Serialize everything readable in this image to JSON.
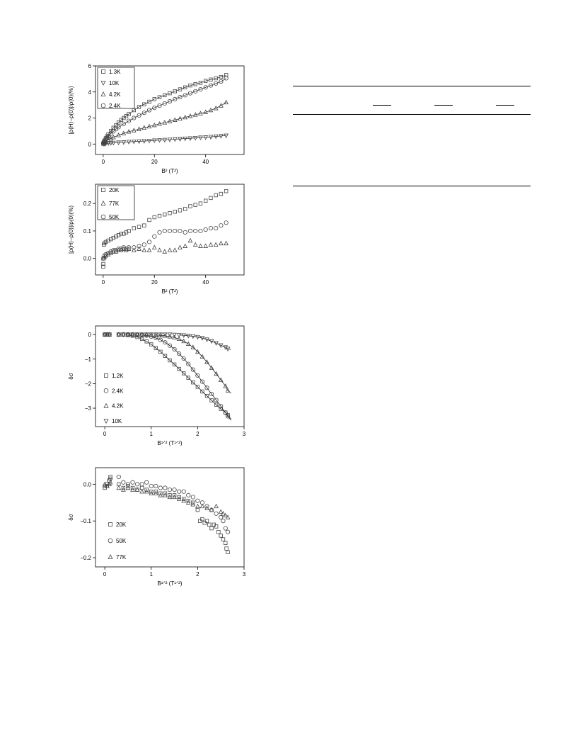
{
  "chart_data": [
    {
      "id": "p1",
      "type": "scatter",
      "xlabel": "B² (T²)",
      "ylabel": "[ρ(H)−ρ(0)]/ρ(0)(%)",
      "xlim": [
        -3,
        55
      ],
      "ylim": [
        -0.8,
        6
      ],
      "xticks": [
        0,
        20,
        40
      ],
      "yticks": [
        0,
        2,
        4,
        6
      ],
      "ytick_labels": [
        "0",
        "2",
        "4",
        "6"
      ],
      "legend": "top-left",
      "series": [
        {
          "name": "1.3K",
          "marker": "square",
          "x": [
            0.05,
            0.2,
            0.5,
            1,
            1.5,
            2,
            3,
            4,
            5,
            6,
            7,
            8,
            9,
            10,
            12,
            14,
            16,
            18,
            20,
            22,
            24,
            26,
            28,
            30,
            32,
            34,
            36,
            38,
            40,
            42,
            44,
            46,
            48
          ],
          "y": [
            0.05,
            0.15,
            0.28,
            0.45,
            0.6,
            0.75,
            1.0,
            1.25,
            1.45,
            1.65,
            1.85,
            2.0,
            2.15,
            2.3,
            2.6,
            2.85,
            3.05,
            3.25,
            3.45,
            3.6,
            3.75,
            3.9,
            4.05,
            4.2,
            4.35,
            4.5,
            4.6,
            4.7,
            4.85,
            4.95,
            5.05,
            5.15,
            5.3
          ]
        },
        {
          "name": "10K",
          "marker": "triangle-down",
          "x": [
            0.05,
            0.5,
            1,
            2,
            3,
            4,
            6,
            8,
            10,
            12,
            14,
            16,
            18,
            20,
            22,
            24,
            26,
            28,
            30,
            32,
            34,
            36,
            38,
            40,
            42,
            44,
            46,
            48
          ],
          "y": [
            0.0,
            0.02,
            0.04,
            0.06,
            0.08,
            0.1,
            0.12,
            0.14,
            0.17,
            0.19,
            0.21,
            0.23,
            0.25,
            0.28,
            0.3,
            0.32,
            0.34,
            0.37,
            0.39,
            0.42,
            0.44,
            0.47,
            0.5,
            0.52,
            0.55,
            0.58,
            0.62,
            0.65
          ]
        },
        {
          "name": "4.2K",
          "marker": "triangle-up",
          "x": [
            0.1,
            0.5,
            1,
            2,
            3,
            4,
            6,
            8,
            10,
            12,
            14,
            16,
            18,
            20,
            22,
            24,
            26,
            28,
            30,
            32,
            34,
            36,
            38,
            40,
            42,
            44,
            46,
            48
          ],
          "y": [
            0.03,
            0.12,
            0.2,
            0.33,
            0.43,
            0.52,
            0.68,
            0.82,
            0.95,
            1.05,
            1.15,
            1.25,
            1.35,
            1.45,
            1.55,
            1.65,
            1.75,
            1.85,
            1.95,
            2.05,
            2.15,
            2.25,
            2.35,
            2.45,
            2.6,
            2.75,
            2.95,
            3.2
          ]
        },
        {
          "name": "2.4K",
          "marker": "circle",
          "x": [
            0.05,
            0.3,
            0.7,
            1,
            1.5,
            2,
            3,
            4,
            5,
            6,
            8,
            10,
            12,
            14,
            16,
            18,
            20,
            22,
            24,
            26,
            28,
            30,
            32,
            34,
            36,
            38,
            40,
            42,
            44,
            46,
            48
          ],
          "y": [
            0.05,
            0.12,
            0.25,
            0.35,
            0.48,
            0.6,
            0.8,
            0.98,
            1.15,
            1.3,
            1.55,
            1.78,
            2.0,
            2.2,
            2.4,
            2.6,
            2.78,
            2.95,
            3.12,
            3.28,
            3.45,
            3.6,
            3.75,
            3.9,
            4.05,
            4.2,
            4.35,
            4.5,
            4.65,
            4.8,
            5.05
          ]
        }
      ]
    },
    {
      "id": "p2",
      "type": "scatter",
      "xlabel": "B² (T²)",
      "ylabel": "[ρ(H)−ρ(0)]/ρ(0)(%)",
      "xlim": [
        -3,
        55
      ],
      "ylim": [
        -0.06,
        0.27
      ],
      "xticks": [
        0,
        20,
        40
      ],
      "yticks": [
        0,
        0.1,
        0.2
      ],
      "ytick_labels": [
        "0.0",
        "0.1",
        "0.2"
      ],
      "legend": "top-left",
      "series": [
        {
          "name": "20K",
          "marker": "square",
          "x": [
            0.02,
            0.05,
            0.1,
            0.3,
            0.5,
            1,
            2,
            3,
            4,
            5,
            6,
            7,
            8,
            9,
            10,
            12,
            14,
            16,
            18,
            20,
            22,
            24,
            26,
            28,
            30,
            32,
            34,
            36,
            38,
            40,
            42,
            44,
            46,
            48
          ],
          "y": [
            -0.03,
            -0.02,
            0.0,
            0.05,
            0.055,
            0.06,
            0.065,
            0.07,
            0.075,
            0.08,
            0.085,
            0.09,
            0.09,
            0.095,
            0.1,
            0.11,
            0.115,
            0.12,
            0.14,
            0.15,
            0.155,
            0.16,
            0.165,
            0.17,
            0.175,
            0.18,
            0.19,
            0.195,
            0.2,
            0.21,
            0.22,
            0.23,
            0.235,
            0.245
          ]
        },
        {
          "name": "77K",
          "marker": "triangle-up",
          "x": [
            0.1,
            0.5,
            1,
            2,
            3,
            4,
            5,
            6,
            7,
            8,
            9,
            10,
            12,
            14,
            16,
            18,
            20,
            22,
            24,
            26,
            28,
            30,
            32,
            34,
            36,
            38,
            40,
            42,
            44,
            46,
            48
          ],
          "y": [
            0.0,
            0.005,
            0.01,
            0.015,
            0.02,
            0.025,
            0.025,
            0.03,
            0.03,
            0.035,
            0.03,
            0.035,
            0.03,
            0.035,
            0.03,
            0.03,
            0.04,
            0.03,
            0.025,
            0.03,
            0.03,
            0.04,
            0.045,
            0.065,
            0.05,
            0.045,
            0.045,
            0.05,
            0.05,
            0.055,
            0.055
          ]
        },
        {
          "name": "50K",
          "marker": "circle",
          "x": [
            0.1,
            0.5,
            1,
            2,
            3,
            4,
            5,
            6,
            7,
            8,
            9,
            10,
            12,
            14,
            16,
            18,
            20,
            22,
            24,
            26,
            28,
            30,
            32,
            34,
            36,
            38,
            40,
            42,
            44,
            46,
            48
          ],
          "y": [
            0.0,
            0.01,
            0.015,
            0.02,
            0.025,
            0.03,
            0.03,
            0.035,
            0.035,
            0.04,
            0.035,
            0.04,
            0.04,
            0.045,
            0.05,
            0.06,
            0.08,
            0.095,
            0.1,
            0.1,
            0.1,
            0.1,
            0.095,
            0.1,
            0.1,
            0.1,
            0.105,
            0.11,
            0.11,
            0.12,
            0.13
          ]
        }
      ]
    },
    {
      "id": "p3",
      "type": "scatter",
      "xlabel": "B¹ᐟ² (T¹ᐟ²)",
      "ylabel": "δσ",
      "xlim": [
        -0.2,
        3.0
      ],
      "ylim": [
        -3.75,
        0.35
      ],
      "xticks": [
        0,
        1,
        2,
        3
      ],
      "yticks": [
        0,
        -1,
        -2,
        -3
      ],
      "ytick_labels": [
        "0",
        "−1",
        "−2",
        "−3"
      ],
      "legend": "bottom-left",
      "series": [
        {
          "name": "1.2K",
          "marker": "square",
          "x": [
            0.0,
            0.05,
            0.1,
            0.3,
            0.4,
            0.5,
            0.6,
            0.7,
            0.8,
            0.9,
            1.0,
            1.1,
            1.2,
            1.3,
            1.4,
            1.5,
            1.6,
            1.7,
            1.8,
            1.9,
            2.0,
            2.1,
            2.2,
            2.3,
            2.4,
            2.5,
            2.6,
            2.65
          ],
          "y": [
            0.0,
            0.0,
            0.0,
            0.0,
            0.0,
            -0.02,
            -0.05,
            -0.1,
            -0.18,
            -0.28,
            -0.4,
            -0.55,
            -0.7,
            -0.87,
            -1.05,
            -1.22,
            -1.4,
            -1.58,
            -1.76,
            -1.95,
            -2.13,
            -2.32,
            -2.5,
            -2.68,
            -2.86,
            -3.03,
            -3.18,
            -3.28
          ]
        },
        {
          "name": "2.4K",
          "marker": "circle",
          "x": [
            0.0,
            0.05,
            0.1,
            0.3,
            0.4,
            0.5,
            0.6,
            0.7,
            0.8,
            0.9,
            1.0,
            1.1,
            1.2,
            1.3,
            1.4,
            1.5,
            1.6,
            1.7,
            1.8,
            1.9,
            2.0,
            2.1,
            2.2,
            2.3,
            2.4,
            2.5,
            2.6,
            2.65
          ],
          "y": [
            0.0,
            0.0,
            0.0,
            0.0,
            0.0,
            0.0,
            0.0,
            -0.01,
            -0.02,
            -0.04,
            -0.08,
            -0.14,
            -0.22,
            -0.32,
            -0.45,
            -0.6,
            -0.78,
            -0.98,
            -1.2,
            -1.43,
            -1.67,
            -1.92,
            -2.17,
            -2.42,
            -2.67,
            -2.92,
            -3.18,
            -3.33
          ]
        },
        {
          "name": "4.2K",
          "marker": "triangle-up",
          "x": [
            0.0,
            0.05,
            0.1,
            0.3,
            0.4,
            0.5,
            0.6,
            0.7,
            0.8,
            0.9,
            1.0,
            1.1,
            1.2,
            1.3,
            1.4,
            1.5,
            1.6,
            1.7,
            1.8,
            1.9,
            2.0,
            2.1,
            2.2,
            2.3,
            2.4,
            2.5,
            2.6,
            2.65
          ],
          "y": [
            0.0,
            0.0,
            0.0,
            0.0,
            0.0,
            0.0,
            0.0,
            0.0,
            0.0,
            0.0,
            -0.01,
            -0.02,
            -0.03,
            -0.05,
            -0.08,
            -0.12,
            -0.18,
            -0.27,
            -0.38,
            -0.52,
            -0.7,
            -0.9,
            -1.12,
            -1.36,
            -1.6,
            -1.85,
            -2.1,
            -2.28
          ]
        },
        {
          "name": "10K",
          "marker": "triangle-down",
          "x": [
            0.0,
            0.05,
            0.1,
            0.3,
            0.4,
            0.5,
            0.6,
            0.7,
            0.8,
            0.9,
            1.0,
            1.1,
            1.2,
            1.3,
            1.4,
            1.5,
            1.6,
            1.7,
            1.8,
            1.9,
            2.0,
            2.1,
            2.2,
            2.3,
            2.4,
            2.5,
            2.6,
            2.65
          ],
          "y": [
            0.0,
            0.0,
            0.0,
            0.0,
            0.0,
            0.0,
            0.0,
            0.0,
            0.0,
            0.0,
            0.0,
            0.0,
            0.0,
            0.0,
            0.0,
            -0.01,
            -0.02,
            -0.03,
            -0.05,
            -0.07,
            -0.1,
            -0.14,
            -0.2,
            -0.27,
            -0.35,
            -0.44,
            -0.52,
            -0.58
          ]
        }
      ]
    },
    {
      "id": "p4",
      "type": "scatter",
      "xlabel": "B¹ᐟ² (T¹ᐟ²)",
      "ylabel": "δσ",
      "xlim": [
        -0.2,
        3.0
      ],
      "ylim": [
        -0.225,
        0.045
      ],
      "xticks": [
        0,
        1,
        2,
        3
      ],
      "yticks": [
        0,
        -0.1,
        -0.2
      ],
      "ytick_labels": [
        "0.0",
        "−0.1",
        "−0.2"
      ],
      "legend": "bottom-left",
      "series": [
        {
          "name": "20K",
          "marker": "square",
          "x": [
            0.0,
            0.05,
            0.1,
            0.12,
            0.3,
            0.4,
            0.5,
            0.6,
            0.7,
            0.8,
            0.9,
            1.0,
            1.1,
            1.2,
            1.3,
            1.4,
            1.5,
            1.6,
            1.7,
            1.8,
            1.9,
            2.0,
            2.05,
            2.1,
            2.15,
            2.2,
            2.25,
            2.3,
            2.35,
            2.4,
            2.45,
            2.5,
            2.55,
            2.6,
            2.62,
            2.65
          ],
          "y": [
            -0.01,
            -0.005,
            0.01,
            0.02,
            0.0,
            -0.01,
            -0.005,
            -0.01,
            -0.015,
            -0.01,
            -0.015,
            -0.02,
            -0.02,
            -0.025,
            -0.025,
            -0.03,
            -0.03,
            -0.035,
            -0.04,
            -0.045,
            -0.05,
            -0.07,
            -0.1,
            -0.095,
            -0.105,
            -0.1,
            -0.11,
            -0.12,
            -0.11,
            -0.115,
            -0.13,
            -0.14,
            -0.15,
            -0.16,
            -0.175,
            -0.185
          ]
        },
        {
          "name": "50K",
          "marker": "circle",
          "x": [
            0.0,
            0.05,
            0.1,
            0.12,
            0.3,
            0.4,
            0.5,
            0.6,
            0.7,
            0.8,
            0.9,
            1.0,
            1.1,
            1.2,
            1.3,
            1.4,
            1.5,
            1.6,
            1.7,
            1.8,
            1.9,
            2.0,
            2.1,
            2.2,
            2.3,
            2.4,
            2.5,
            2.55,
            2.6,
            2.65
          ],
          "y": [
            -0.005,
            0.0,
            0.01,
            0.015,
            0.02,
            0.005,
            0.0,
            0.005,
            0.0,
            0.0,
            0.005,
            -0.005,
            -0.005,
            -0.01,
            -0.01,
            -0.015,
            -0.015,
            -0.02,
            -0.02,
            -0.03,
            -0.035,
            -0.045,
            -0.05,
            -0.06,
            -0.07,
            -0.08,
            -0.09,
            -0.1,
            -0.12,
            -0.13
          ]
        },
        {
          "name": "77K",
          "marker": "triangle-up",
          "x": [
            0.0,
            0.05,
            0.1,
            0.12,
            0.3,
            0.4,
            0.5,
            0.6,
            0.7,
            0.8,
            0.9,
            1.0,
            1.1,
            1.2,
            1.3,
            1.4,
            1.5,
            1.6,
            1.7,
            1.8,
            1.9,
            2.0,
            2.1,
            2.2,
            2.3,
            2.4,
            2.5,
            2.55,
            2.6,
            2.65
          ],
          "y": [
            0.0,
            -0.005,
            0.0,
            0.005,
            -0.01,
            -0.015,
            -0.01,
            -0.015,
            -0.015,
            -0.02,
            -0.02,
            -0.025,
            -0.025,
            -0.03,
            -0.03,
            -0.035,
            -0.035,
            -0.04,
            -0.045,
            -0.05,
            -0.055,
            -0.06,
            -0.06,
            -0.065,
            -0.07,
            -0.06,
            -0.075,
            -0.08,
            -0.085,
            -0.09
          ]
        }
      ]
    }
  ]
}
